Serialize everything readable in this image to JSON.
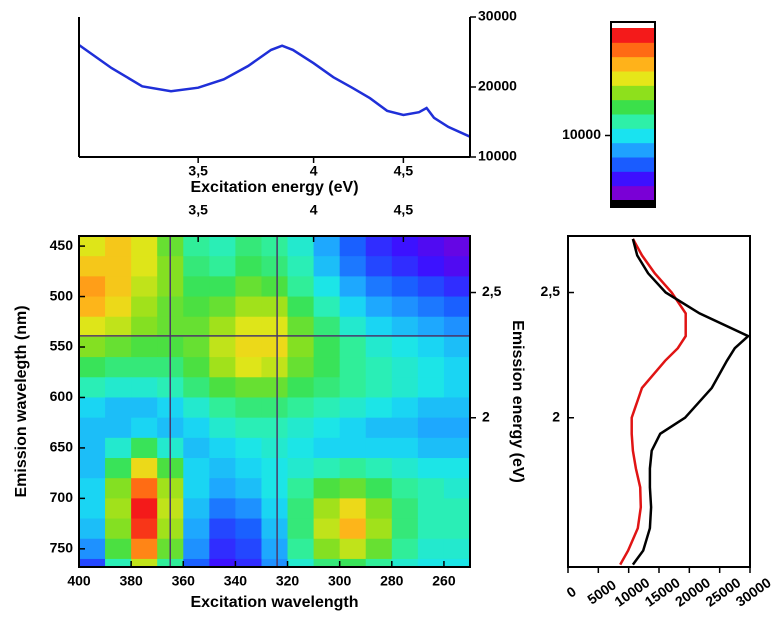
{
  "chart_data": [
    {
      "type": "line",
      "xlabel": "Excitation energy (eV)",
      "x": [
        3.1,
        3.2,
        3.3,
        3.4,
        3.5,
        3.6,
        3.7,
        3.8,
        3.85,
        3.9,
        4.0,
        4.1,
        4.2,
        4.3,
        4.4,
        4.5,
        4.6,
        4.65,
        4.7,
        4.8,
        4.96
      ],
      "xlim": [
        3.1,
        4.96
      ],
      "x_scale": "reciprocal",
      "xticks": [
        {
          "value": 3.5,
          "label": "3,5"
        },
        4,
        {
          "value": 4.5,
          "label": "4,5"
        }
      ],
      "ylim": [
        10000,
        30000
      ],
      "yticks": [
        10000,
        20000,
        30000
      ],
      "y_axis_side": "right",
      "series": [
        {
          "color": "#1f2fd8",
          "values": [
            26000,
            22700,
            20100,
            19400,
            19900,
            21100,
            23000,
            25300,
            25900,
            25300,
            23400,
            21400,
            19900,
            18400,
            16600,
            16000,
            16400,
            17000,
            15600,
            14300,
            12900
          ]
        }
      ]
    },
    {
      "type": "heatmap",
      "xlabel": "Excitation wavelength",
      "ylabel": "Emission wavelegth (nm)",
      "y2label": "Emission energy (eV)",
      "x": [
        395,
        385,
        375,
        365,
        355,
        345,
        335,
        325,
        315,
        305,
        295,
        285,
        275,
        265,
        255
      ],
      "y": [
        450,
        470,
        490,
        510,
        530,
        550,
        570,
        590,
        610,
        630,
        650,
        670,
        690,
        710,
        730,
        750,
        770
      ],
      "z": [
        [
          15500,
          16500,
          15500,
          13500,
          11500,
          11000,
          12000,
          11500,
          10500,
          8500,
          7000,
          6000,
          5500,
          5000,
          4500
        ],
        [
          16500,
          16500,
          15500,
          14000,
          12000,
          11500,
          12500,
          12000,
          11000,
          9000,
          7500,
          6500,
          6000,
          5500,
          5000
        ],
        [
          17500,
          16500,
          15000,
          14000,
          12500,
          12500,
          13500,
          13000,
          11500,
          10000,
          8500,
          7500,
          7000,
          6500,
          6000
        ],
        [
          17000,
          16000,
          14500,
          13500,
          13000,
          13500,
          14500,
          14500,
          12500,
          11000,
          9500,
          8500,
          8000,
          7500,
          7000
        ],
        [
          15500,
          15000,
          14000,
          13500,
          13500,
          14500,
          15500,
          15500,
          13500,
          12000,
          10500,
          9500,
          9000,
          8500,
          8000
        ],
        [
          14000,
          13500,
          13000,
          13000,
          13500,
          15000,
          16000,
          16000,
          14000,
          12500,
          11500,
          10500,
          10000,
          9500,
          9000
        ],
        [
          12500,
          12000,
          12000,
          12000,
          13000,
          14500,
          15500,
          15000,
          13500,
          12500,
          11500,
          11000,
          10500,
          10000,
          9500
        ],
        [
          11000,
          10500,
          10500,
          11000,
          12000,
          13000,
          13500,
          13500,
          12500,
          12000,
          11500,
          11000,
          10500,
          10000,
          9500
        ],
        [
          9500,
          9000,
          9000,
          9500,
          10500,
          11500,
          12000,
          12000,
          11500,
          11000,
          10500,
          10000,
          9500,
          9000,
          9000
        ],
        [
          9000,
          9000,
          9500,
          9000,
          9500,
          10500,
          11000,
          11000,
          10500,
          10000,
          9500,
          9000,
          9000,
          8500,
          8500
        ],
        [
          9000,
          10500,
          12500,
          10500,
          9000,
          9500,
          10000,
          10500,
          10000,
          9500,
          9500,
          9500,
          9500,
          9000,
          9000
        ],
        [
          9000,
          12500,
          16000,
          13000,
          9500,
          9000,
          9500,
          10000,
          10500,
          11000,
          11500,
          11000,
          10500,
          10000,
          10000
        ],
        [
          9500,
          14000,
          18500,
          14500,
          9500,
          8500,
          9000,
          10000,
          11500,
          13000,
          13500,
          12500,
          11500,
          11000,
          10500
        ],
        [
          9500,
          14500,
          20000,
          15000,
          9000,
          7500,
          8000,
          9500,
          12000,
          14500,
          16000,
          14000,
          12000,
          11000,
          11000
        ],
        [
          9000,
          14000,
          19500,
          14500,
          8500,
          6500,
          7000,
          9000,
          12000,
          15000,
          17000,
          14500,
          12000,
          11000,
          11000
        ],
        [
          8000,
          13000,
          18000,
          13500,
          8000,
          6000,
          6500,
          8500,
          11500,
          14000,
          15000,
          13500,
          11500,
          10500,
          10500
        ],
        [
          6500,
          11000,
          15000,
          11500,
          7000,
          5500,
          6000,
          8000,
          10500,
          12000,
          12500,
          11500,
          10500,
          10000,
          10000
        ]
      ],
      "xlim": [
        400,
        250
      ],
      "xticks": [
        400,
        380,
        360,
        340,
        320,
        300,
        280,
        260
      ],
      "ylim": [
        440,
        768
      ],
      "yticks": [
        450,
        500,
        550,
        600,
        650,
        700,
        750
      ],
      "x2lim": [
        3.1,
        4.96
      ],
      "x2_scale": "reciprocal",
      "x2ticks": [
        {
          "value": 3.5,
          "label": "3,5"
        },
        4,
        {
          "value": 4.5,
          "label": "4,5"
        }
      ],
      "y2lim": [
        2.818,
        1.615
      ],
      "y2_scale": "reciprocal",
      "y2ticks": [
        {
          "value": 2.5,
          "label": "2,5"
        },
        2
      ],
      "crosshair": {
        "x": [
          365,
          324
        ],
        "y": [
          539
        ],
        "color": "#4a3868"
      }
    },
    {
      "type": "colorbar",
      "zlim": [
        4000,
        20000
      ],
      "ticks": [
        10000
      ],
      "colors": [
        "#7a00d6",
        "#3d10ff",
        "#1a5cff",
        "#1fa2ff",
        "#19e3f0",
        "#2ef0a8",
        "#3be04a",
        "#8ee01c",
        "#e6e619",
        "#ffb21a",
        "#ff6a14",
        "#f41a1a"
      ],
      "over_color": "#ffffff",
      "under_color": "#000000"
    },
    {
      "type": "line",
      "orientation": "horizontal",
      "y": [
        2.8,
        2.7,
        2.6,
        2.5,
        2.4,
        2.3,
        2.25,
        2.2,
        2.1,
        2.0,
        1.95,
        1.9,
        1.85,
        1.8,
        1.75,
        1.7,
        1.65,
        1.62
      ],
      "ylim": [
        2.818,
        1.615
      ],
      "y_scale": "reciprocal",
      "yticks": [
        {
          "value": 2.5,
          "label": "2,5"
        },
        2
      ],
      "xlim": [
        0,
        30000
      ],
      "xticks": [
        0,
        5000,
        10000,
        15000,
        20000,
        25000,
        30000
      ],
      "series": [
        {
          "color": "#e01414",
          "values": [
            10700,
            12200,
            14300,
            17100,
            19400,
            19400,
            18100,
            16000,
            12200,
            10500,
            10500,
            10700,
            11200,
            11900,
            12000,
            11500,
            9900,
            8600
          ]
        },
        {
          "color": "#000000",
          "values": [
            10700,
            11400,
            13200,
            16100,
            21700,
            29700,
            27500,
            26200,
            23700,
            19300,
            15200,
            13800,
            13500,
            13500,
            13700,
            13500,
            12400,
            10700
          ]
        }
      ]
    }
  ]
}
